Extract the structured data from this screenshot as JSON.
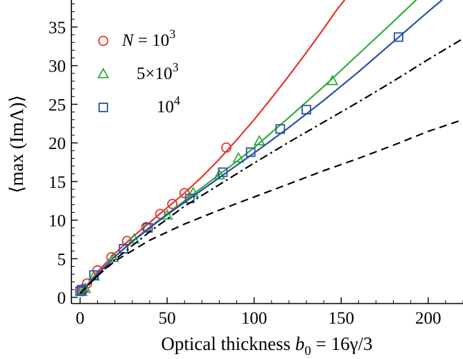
{
  "chart_data": {
    "type": "line",
    "xlabel": "Optical thickness b0 = 16γ/3",
    "xlabel_main": "Optical thickness ",
    "xlabel_var": "b",
    "xlabel_sub": "0",
    "xlabel_rest": " = 16γ/3",
    "ylabel": "⟨max (ImΛ)⟩",
    "xlim": [
      -5,
      220
    ],
    "ylim": [
      -0.8,
      38.5
    ],
    "x_ticks": [
      0,
      50,
      100,
      150,
      200
    ],
    "y_ticks": [
      0,
      5,
      10,
      15,
      20,
      25,
      30,
      35
    ],
    "grid": false,
    "legend_position": "top-left",
    "legend": [
      {
        "label_main": "N",
        "label_rest": " = 10",
        "label_sup": "3",
        "color": "#e8322d",
        "marker": "circle"
      },
      {
        "label_main": "",
        "label_rest": "5×10",
        "label_sup": "3",
        "color": "#2fae3a",
        "marker": "triangle"
      },
      {
        "label_main": "",
        "label_rest": "10",
        "label_sup": "4",
        "color": "#2a4fa3",
        "marker": "square"
      }
    ],
    "series": [
      {
        "color": "#e8322d",
        "marker": "circle",
        "points": [
          [
            1,
            0.8
          ],
          [
            2,
            1.1
          ],
          [
            4,
            1.8
          ],
          [
            10,
            3.5
          ],
          [
            18,
            5.2
          ],
          [
            27,
            7.3
          ],
          [
            38,
            9.1
          ],
          [
            46,
            10.8
          ],
          [
            53,
            12.1
          ],
          [
            60,
            13.5
          ],
          [
            84,
            19.4
          ]
        ],
        "fit": [
          [
            0,
            0.5
          ],
          [
            10,
            3.3
          ],
          [
            20,
            5.7
          ],
          [
            30,
            7.8
          ],
          [
            40,
            9.7
          ],
          [
            50,
            11.6
          ],
          [
            60,
            13.5
          ],
          [
            70,
            15.6
          ],
          [
            80,
            17.9
          ],
          [
            90,
            20.4
          ],
          [
            100,
            23.0
          ],
          [
            110,
            25.8
          ],
          [
            120,
            28.7
          ],
          [
            130,
            31.7
          ],
          [
            140,
            34.8
          ],
          [
            148,
            37.4
          ],
          [
            152,
            38.5
          ]
        ]
      },
      {
        "color": "#2fae3a",
        "marker": "triangle",
        "points": [
          [
            1,
            0.7
          ],
          [
            3,
            1.1
          ],
          [
            8,
            2.7
          ],
          [
            19,
            5.1
          ],
          [
            31,
            7.5
          ],
          [
            50,
            10.6
          ],
          [
            65,
            13.5
          ],
          [
            80,
            15.8
          ],
          [
            91,
            18.0
          ],
          [
            103,
            20.2
          ],
          [
            145,
            28.0
          ]
        ],
        "fit": [
          [
            0,
            0.5
          ],
          [
            10,
            3.0
          ],
          [
            20,
            5.3
          ],
          [
            30,
            7.3
          ],
          [
            40,
            9.1
          ],
          [
            50,
            10.8
          ],
          [
            60,
            12.5
          ],
          [
            70,
            14.2
          ],
          [
            80,
            15.9
          ],
          [
            90,
            17.6
          ],
          [
            100,
            19.4
          ],
          [
            120,
            23.3
          ],
          [
            140,
            27.3
          ],
          [
            160,
            31.5
          ],
          [
            180,
            35.7
          ],
          [
            200,
            40.0
          ]
        ]
      },
      {
        "color": "#2a4fa3",
        "marker": "square",
        "points": [
          [
            0,
            0.8
          ],
          [
            1,
            1.0
          ],
          [
            8,
            2.9
          ],
          [
            25,
            6.3
          ],
          [
            39,
            9.0
          ],
          [
            63,
            12.8
          ],
          [
            82,
            16.2
          ],
          [
            98,
            18.8
          ],
          [
            115,
            21.8
          ],
          [
            130,
            24.3
          ],
          [
            183,
            33.7
          ]
        ],
        "fit": [
          [
            0,
            0.5
          ],
          [
            10,
            3.0
          ],
          [
            20,
            5.3
          ],
          [
            30,
            7.2
          ],
          [
            40,
            9.0
          ],
          [
            50,
            10.7
          ],
          [
            60,
            12.3
          ],
          [
            70,
            13.9
          ],
          [
            80,
            15.5
          ],
          [
            90,
            17.1
          ],
          [
            100,
            18.7
          ],
          [
            120,
            22.0
          ],
          [
            140,
            25.5
          ],
          [
            160,
            29.2
          ],
          [
            180,
            33.1
          ],
          [
            200,
            37.0
          ],
          [
            208,
            38.5
          ]
        ]
      },
      {
        "color": "#000000",
        "line_style": "dash-dot",
        "points": [],
        "fit": [
          [
            0,
            0.5
          ],
          [
            10,
            2.8
          ],
          [
            20,
            4.9
          ],
          [
            40,
            8.5
          ],
          [
            60,
            11.8
          ],
          [
            80,
            14.6
          ],
          [
            100,
            17.4
          ],
          [
            120,
            20.1
          ],
          [
            140,
            22.7
          ],
          [
            160,
            25.3
          ],
          [
            180,
            28.0
          ],
          [
            200,
            30.8
          ],
          [
            220,
            33.5
          ]
        ]
      },
      {
        "color": "#000000",
        "line_style": "dashed",
        "points": [],
        "fit": [
          [
            0,
            0.5
          ],
          [
            10,
            2.8
          ],
          [
            20,
            4.7
          ],
          [
            40,
            7.4
          ],
          [
            60,
            9.5
          ],
          [
            80,
            11.3
          ],
          [
            100,
            13.0
          ],
          [
            120,
            14.7
          ],
          [
            140,
            16.4
          ],
          [
            160,
            18.0
          ],
          [
            180,
            19.7
          ],
          [
            200,
            21.5
          ],
          [
            220,
            23.0
          ]
        ]
      }
    ]
  }
}
